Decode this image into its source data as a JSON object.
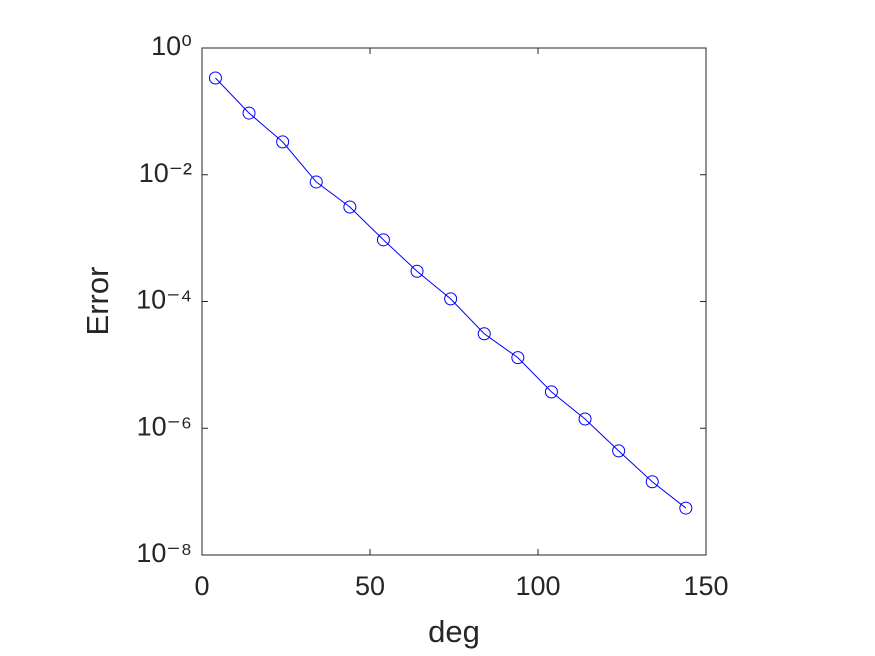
{
  "chart_data": {
    "type": "line",
    "x_label": "deg",
    "y_label": "Error",
    "x": [
      4,
      14,
      24,
      34,
      44,
      54,
      64,
      74,
      84,
      94,
      104,
      114,
      124,
      134,
      144
    ],
    "series": [
      {
        "color": "#0000ff",
        "marker": "circle",
        "values": [
          0.336,
          0.094,
          0.033,
          0.0077,
          0.0031,
          0.00094,
          0.0003,
          0.00011,
          3.1e-05,
          1.3e-05,
          3.75e-06,
          1.4e-06,
          4.4e-07,
          1.43e-07,
          5.5e-08
        ]
      }
    ],
    "xlim": [
      0,
      150
    ],
    "xticks": [
      0,
      50,
      100,
      150
    ],
    "ylim": [
      1e-08,
      1
    ],
    "y_scale": "log",
    "yticks": [
      {
        "value": 1e-08,
        "label": "10⁻⁸"
      },
      {
        "value": 1e-06,
        "label": "10⁻⁶"
      },
      {
        "value": 0.0001,
        "label": "10⁻⁴"
      },
      {
        "value": 0.01,
        "label": "10⁻²"
      },
      {
        "value": 1,
        "label": "10⁰"
      }
    ]
  }
}
